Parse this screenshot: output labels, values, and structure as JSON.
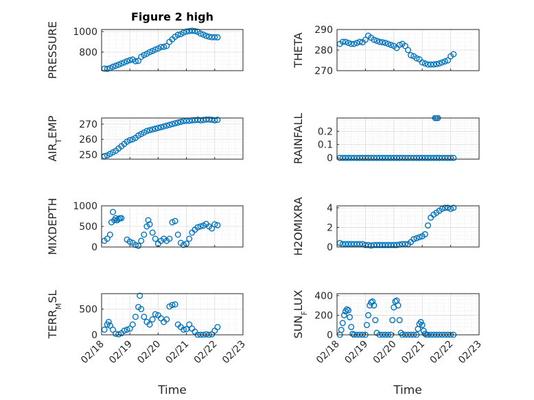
{
  "figure": {
    "title": "Figure 2 high",
    "xlabel": "Time",
    "marker_color": "#0072BD"
  },
  "chart_data": [
    {
      "type": "scatter",
      "ylabel": "PRESSURE",
      "ylabel_html": [
        "PRESSURE"
      ],
      "ylim": [
        620,
        1020
      ],
      "yticks": [
        800,
        1000
      ],
      "xlim": [
        0,
        5
      ],
      "xtick_labels": [
        "02/18",
        "02/19",
        "02/20",
        "02/21",
        "02/22",
        "02/23"
      ],
      "show_xtick_labels": false,
      "x": [
        0.1,
        0.2,
        0.3,
        0.4,
        0.5,
        0.6,
        0.7,
        0.8,
        0.9,
        1.0,
        1.1,
        1.2,
        1.3,
        1.4,
        1.5,
        1.6,
        1.7,
        1.8,
        1.9,
        2.0,
        2.1,
        2.2,
        2.3,
        2.4,
        2.5,
        2.6,
        2.7,
        2.8,
        2.9,
        3.0,
        3.1,
        3.2,
        3.3,
        3.4,
        3.5,
        3.6,
        3.7,
        3.8,
        3.9,
        4.0,
        4.1
      ],
      "y": [
        640,
        638,
        645,
        658,
        668,
        678,
        690,
        700,
        712,
        722,
        728,
        712,
        715,
        755,
        772,
        785,
        800,
        812,
        825,
        835,
        850,
        852,
        860,
        900,
        925,
        950,
        968,
        975,
        990,
        1000,
        1005,
        1008,
        1005,
        998,
        980,
        970,
        958,
        950,
        945,
        945,
        944
      ]
    },
    {
      "type": "scatter",
      "ylabel": "THETA",
      "ylim": [
        270,
        290
      ],
      "yticks": [
        270,
        280,
        290
      ],
      "xlim": [
        0,
        5
      ],
      "xtick_labels": [
        "02/18",
        "02/19",
        "02/20",
        "02/21",
        "02/22",
        "02/23"
      ],
      "show_xtick_labels": false,
      "x": [
        0.1,
        0.2,
        0.3,
        0.4,
        0.5,
        0.6,
        0.7,
        0.8,
        0.9,
        1.0,
        1.1,
        1.2,
        1.3,
        1.4,
        1.5,
        1.6,
        1.7,
        1.8,
        1.9,
        2.0,
        2.1,
        2.2,
        2.3,
        2.4,
        2.5,
        2.6,
        2.7,
        2.8,
        2.9,
        3.0,
        3.1,
        3.2,
        3.3,
        3.4,
        3.5,
        3.6,
        3.7,
        3.8,
        3.9,
        4.0,
        4.1
      ],
      "y": [
        283,
        284,
        284,
        283.5,
        283,
        283,
        283.5,
        284,
        283.8,
        285,
        287,
        286,
        285,
        284.5,
        284,
        283.8,
        283.5,
        283,
        282.5,
        282,
        281,
        282.5,
        283,
        282,
        280,
        277.5,
        277,
        276,
        275.5,
        274,
        273.5,
        273,
        273,
        273,
        273.2,
        273.5,
        274,
        274.5,
        275,
        277,
        278
      ]
    },
    {
      "type": "scatter",
      "ylabel": "AIR_TEMP",
      "ylim": [
        247,
        274
      ],
      "yticks": [
        250,
        260,
        270
      ],
      "xlim": [
        0,
        5
      ],
      "xtick_labels": [
        "02/18",
        "02/19",
        "02/20",
        "02/21",
        "02/22",
        "02/23"
      ],
      "show_xtick_labels": false,
      "x": [
        0.1,
        0.2,
        0.3,
        0.4,
        0.5,
        0.6,
        0.7,
        0.8,
        0.9,
        1.0,
        1.1,
        1.2,
        1.3,
        1.4,
        1.5,
        1.6,
        1.7,
        1.8,
        1.9,
        2.0,
        2.1,
        2.2,
        2.3,
        2.4,
        2.5,
        2.6,
        2.7,
        2.8,
        2.9,
        3.0,
        3.1,
        3.2,
        3.3,
        3.4,
        3.5,
        3.6,
        3.7,
        3.8,
        3.9,
        4.0,
        4.1
      ],
      "y": [
        249,
        249.5,
        250.5,
        251.5,
        252.5,
        254,
        255.5,
        257,
        258.5,
        259.5,
        260,
        261,
        262.5,
        263.5,
        264.5,
        265.5,
        266,
        266.5,
        267,
        267.5,
        268,
        268.5,
        269,
        269.5,
        270,
        270.5,
        271,
        271.5,
        272,
        272.2,
        272.2,
        272.5,
        272.6,
        272.8,
        272.5,
        272.7,
        273,
        273,
        272.8,
        272.5,
        272.8
      ]
    },
    {
      "type": "scatter",
      "ylabel": "RAINFALL",
      "ylim": [
        -0.01,
        0.3
      ],
      "yticks": [
        0,
        0.1,
        0.2
      ],
      "xlim": [
        0,
        5
      ],
      "xtick_labels": [
        "02/18",
        "02/19",
        "02/20",
        "02/21",
        "02/22",
        "02/23"
      ],
      "show_xtick_labels": false,
      "x": [
        0.1,
        0.2,
        0.3,
        0.4,
        0.5,
        0.6,
        0.7,
        0.8,
        0.9,
        1.0,
        1.1,
        1.2,
        1.3,
        1.4,
        1.5,
        1.6,
        1.7,
        1.8,
        1.9,
        2.0,
        2.1,
        2.2,
        2.3,
        2.4,
        2.5,
        2.6,
        2.7,
        2.8,
        2.9,
        3.0,
        3.1,
        3.2,
        3.3,
        3.4,
        3.5,
        3.6,
        3.7,
        3.8,
        3.9,
        4.0,
        4.1,
        3.45,
        3.5,
        3.55
      ],
      "y": [
        0,
        0,
        0,
        0,
        0,
        0,
        0,
        0,
        0,
        0,
        0,
        0,
        0,
        0,
        0,
        0,
        0,
        0,
        0,
        0,
        0,
        0,
        0,
        0,
        0,
        0,
        0,
        0,
        0,
        0,
        0,
        0,
        0,
        0,
        0,
        0,
        0,
        0,
        0,
        0,
        0,
        0.3,
        0.3,
        0.3
      ]
    },
    {
      "type": "scatter",
      "ylabel": "MIXDEPTH",
      "ylim": [
        0,
        1000
      ],
      "yticks": [
        0,
        500,
        1000
      ],
      "xlim": [
        0,
        5
      ],
      "xtick_labels": [
        "02/18",
        "02/19",
        "02/20",
        "02/21",
        "02/22",
        "02/23"
      ],
      "show_xtick_labels": false,
      "x": [
        0.1,
        0.2,
        0.3,
        0.35,
        0.4,
        0.45,
        0.5,
        0.55,
        0.6,
        0.65,
        0.7,
        0.9,
        1.0,
        1.1,
        1.2,
        1.3,
        1.4,
        1.5,
        1.6,
        1.65,
        1.7,
        1.8,
        1.9,
        2.0,
        2.1,
        2.2,
        2.3,
        2.4,
        2.5,
        2.6,
        2.7,
        2.8,
        2.9,
        3.0,
        3.1,
        3.2,
        3.3,
        3.4,
        3.5,
        3.6,
        3.7,
        3.8,
        3.9,
        4.0,
        4.1
      ],
      "y": [
        150,
        200,
        300,
        600,
        850,
        650,
        700,
        650,
        680,
        700,
        700,
        180,
        130,
        100,
        50,
        30,
        150,
        300,
        500,
        650,
        550,
        350,
        200,
        80,
        150,
        200,
        150,
        200,
        600,
        630,
        300,
        100,
        50,
        80,
        200,
        350,
        420,
        480,
        500,
        520,
        560,
        500,
        450,
        550,
        530
      ]
    },
    {
      "type": "scatter",
      "ylabel": "H2OMIXRA",
      "ylim": [
        0,
        4.2
      ],
      "yticks": [
        0,
        2,
        4
      ],
      "xlim": [
        0,
        5
      ],
      "xtick_labels": [
        "02/18",
        "02/19",
        "02/20",
        "02/21",
        "02/22",
        "02/23"
      ],
      "show_xtick_labels": false,
      "x": [
        0.1,
        0.2,
        0.3,
        0.4,
        0.5,
        0.6,
        0.7,
        0.8,
        0.9,
        1.0,
        1.1,
        1.2,
        1.3,
        1.4,
        1.5,
        1.6,
        1.7,
        1.8,
        1.9,
        2.0,
        2.1,
        2.2,
        2.3,
        2.4,
        2.5,
        2.6,
        2.7,
        2.8,
        2.9,
        3.0,
        3.1,
        3.2,
        3.3,
        3.4,
        3.5,
        3.6,
        3.7,
        3.8,
        3.9,
        4.0,
        4.1
      ],
      "y": [
        0.4,
        0.3,
        0.3,
        0.3,
        0.3,
        0.3,
        0.3,
        0.3,
        0.3,
        0.2,
        0.2,
        0.15,
        0.2,
        0.2,
        0.2,
        0.2,
        0.2,
        0.2,
        0.2,
        0.2,
        0.2,
        0.25,
        0.3,
        0.3,
        0.3,
        0.5,
        0.8,
        0.9,
        1.0,
        1.1,
        1.3,
        2.2,
        3.0,
        3.3,
        3.5,
        3.7,
        3.9,
        4.0,
        4.0,
        3.9,
        4.0
      ]
    },
    {
      "type": "scatter",
      "ylabel": "TERR_MSL",
      "ylim": [
        0,
        800
      ],
      "yticks": [
        0,
        500
      ],
      "xlim": [
        0,
        5
      ],
      "xtick_labels": [
        "02/18",
        "02/19",
        "02/20",
        "02/21",
        "02/22",
        "02/23"
      ],
      "show_xtick_labels": true,
      "x": [
        0.1,
        0.2,
        0.25,
        0.3,
        0.4,
        0.5,
        0.6,
        0.7,
        0.8,
        0.9,
        1.0,
        1.1,
        1.2,
        1.3,
        1.35,
        1.4,
        1.5,
        1.6,
        1.7,
        1.8,
        1.9,
        2.0,
        2.1,
        2.2,
        2.3,
        2.4,
        2.5,
        2.6,
        2.7,
        2.8,
        2.9,
        3.0,
        3.1,
        3.2,
        3.3,
        3.4,
        3.5,
        3.6,
        3.7,
        3.8,
        3.9,
        4.0,
        4.1
      ],
      "y": [
        100,
        200,
        250,
        180,
        100,
        20,
        10,
        30,
        80,
        100,
        120,
        200,
        350,
        540,
        760,
        500,
        350,
        250,
        200,
        300,
        400,
        380,
        320,
        250,
        300,
        550,
        580,
        590,
        200,
        150,
        100,
        110,
        200,
        120,
        60,
        0,
        0,
        0,
        10,
        0,
        10,
        80,
        150
      ]
    },
    {
      "type": "scatter",
      "ylabel": "SUN_FLUX",
      "ylim": [
        0,
        420
      ],
      "yticks": [
        0,
        200,
        400
      ],
      "xlim": [
        0,
        5
      ],
      "xtick_labels": [
        "02/18",
        "02/19",
        "02/20",
        "02/21",
        "02/22",
        "02/23"
      ],
      "show_xtick_labels": true,
      "x": [
        0.1,
        0.15,
        0.2,
        0.25,
        0.3,
        0.35,
        0.4,
        0.45,
        0.5,
        0.55,
        0.6,
        0.7,
        0.8,
        0.9,
        1.0,
        1.05,
        1.1,
        1.15,
        1.2,
        1.25,
        1.3,
        1.35,
        1.4,
        1.5,
        1.6,
        1.7,
        1.8,
        1.9,
        1.95,
        2.0,
        2.05,
        2.1,
        2.15,
        2.2,
        2.25,
        2.3,
        2.4,
        2.5,
        2.6,
        2.7,
        2.8,
        2.85,
        2.9,
        2.95,
        3.0,
        3.05,
        3.1,
        3.15,
        3.2,
        3.3,
        3.4,
        3.5,
        3.6,
        3.7,
        3.8,
        3.9,
        4.0,
        4.1
      ],
      "y": [
        0,
        50,
        120,
        200,
        240,
        260,
        250,
        180,
        80,
        10,
        0,
        0,
        0,
        0,
        0,
        100,
        200,
        300,
        330,
        340,
        300,
        150,
        20,
        0,
        0,
        0,
        0,
        0,
        150,
        280,
        340,
        350,
        300,
        150,
        20,
        0,
        0,
        0,
        0,
        0,
        0,
        60,
        110,
        130,
        100,
        40,
        10,
        0,
        0,
        0,
        0,
        0,
        0,
        0,
        0,
        0,
        0,
        0
      ]
    }
  ]
}
